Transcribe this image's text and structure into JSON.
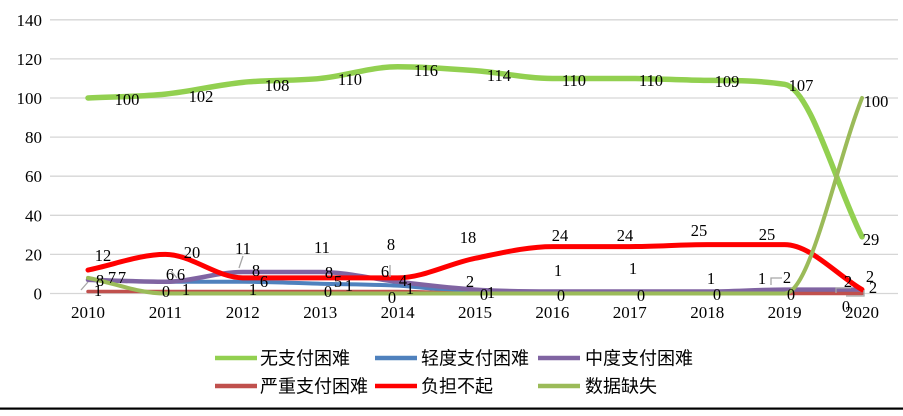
{
  "chart_data": {
    "type": "line",
    "x": [
      "2010",
      "2011",
      "2012",
      "2013",
      "2014",
      "2015",
      "2016",
      "2017",
      "2018",
      "2019",
      "2020"
    ],
    "y_ticks": [
      0,
      20,
      40,
      60,
      80,
      100,
      120,
      140
    ],
    "ylim": [
      0,
      140
    ],
    "grid": true,
    "smooth": true,
    "legend_position": "bottom",
    "series": [
      {
        "name": "无支付困难",
        "color": "#92D050",
        "values": [
          100,
          102,
          108,
          110,
          116,
          114,
          110,
          110,
          109,
          107,
          29
        ]
      },
      {
        "name": "轻度支付困难",
        "color": "#4F81BD",
        "values": [
          7,
          6,
          6,
          5,
          4,
          1,
          1,
          1,
          1,
          1,
          2
        ]
      },
      {
        "name": "中度支付困难",
        "color": "#8064A2",
        "values": [
          7,
          6,
          11,
          11,
          6,
          2,
          1,
          1,
          1,
          2,
          2
        ]
      },
      {
        "name": "严重支付困难",
        "color": "#C0504D",
        "values": [
          1,
          1,
          1,
          1,
          1,
          0,
          0,
          0,
          0,
          0,
          0
        ]
      },
      {
        "name": "负担不起",
        "color": "#FF0000",
        "values": [
          12,
          20,
          8,
          8,
          8,
          18,
          24,
          24,
          25,
          25,
          2
        ]
      },
      {
        "name": "数据缺失",
        "color": "#9BBB59",
        "values": [
          8,
          0,
          0,
          0,
          0,
          0,
          0,
          0,
          0,
          0,
          100
        ]
      }
    ],
    "gridline_color": "#D6D6D6",
    "leader_line_color": "#A6A6A6",
    "divider_color": "#000000"
  }
}
